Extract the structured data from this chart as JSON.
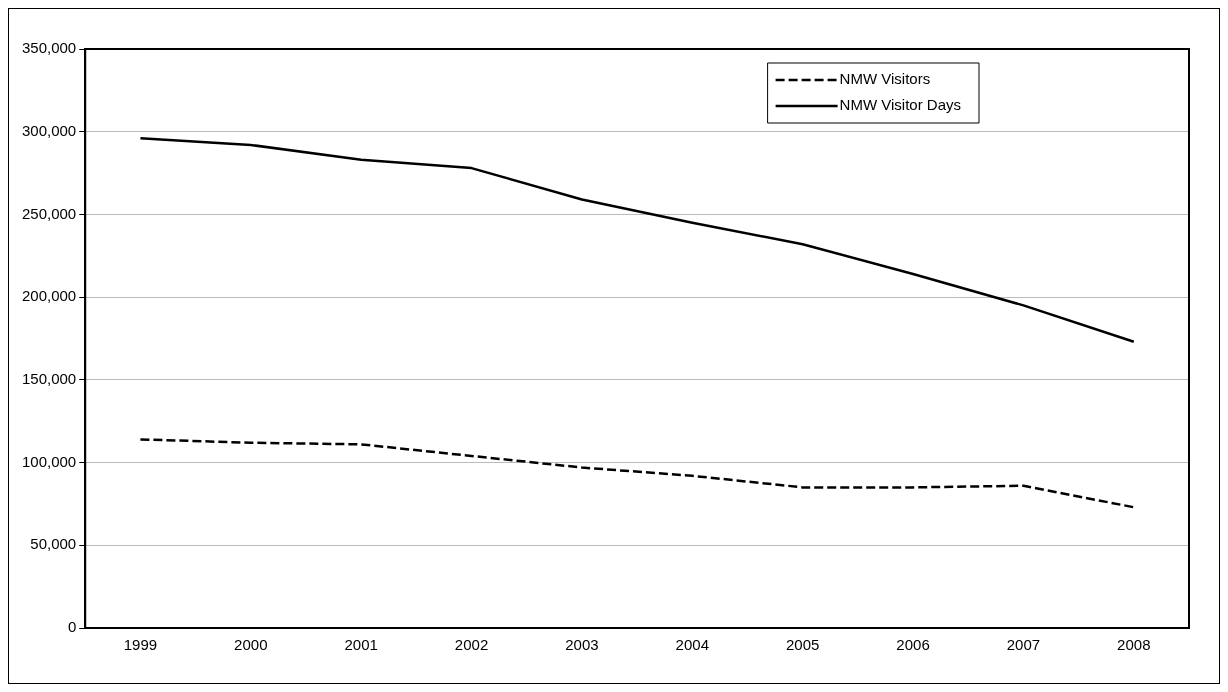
{
  "chart_data": {
    "type": "line",
    "categories": [
      "1999",
      "2000",
      "2001",
      "2002",
      "2003",
      "2004",
      "2005",
      "2006",
      "2007",
      "2008"
    ],
    "series": [
      {
        "name": "NMW Visitors",
        "color": "#000000",
        "line_style": "dashed",
        "values": [
          114000,
          112000,
          111000,
          104000,
          97000,
          92000,
          85000,
          85000,
          86000,
          73000
        ]
      },
      {
        "name": "NMW Visitor Days",
        "color": "#000000",
        "line_style": "solid",
        "values": [
          296000,
          292000,
          283000,
          278000,
          259000,
          245000,
          232000,
          214000,
          195000,
          173000
        ]
      }
    ],
    "ylim": [
      0,
      350000
    ],
    "yticks": [
      {
        "value": 0,
        "label": "0"
      },
      {
        "value": 50000,
        "label": "50,000"
      },
      {
        "value": 100000,
        "label": "100,000"
      },
      {
        "value": 150000,
        "label": "150,000"
      },
      {
        "value": 200000,
        "label": "200,000"
      },
      {
        "value": 250000,
        "label": "250,000"
      },
      {
        "value": 300000,
        "label": "300,000"
      },
      {
        "value": 350000,
        "label": "350,000"
      }
    ],
    "grid": "y",
    "legend": "top right",
    "marker": "none"
  }
}
